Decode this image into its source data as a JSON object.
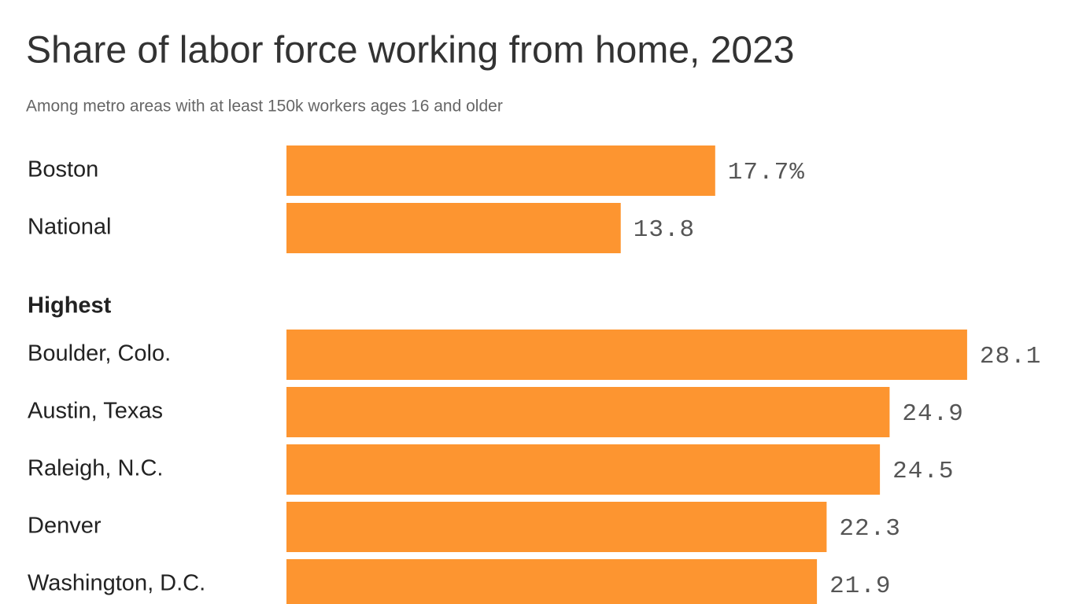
{
  "chart_data": {
    "type": "bar",
    "title": "Share of labor force working from home, 2023",
    "subtitle": "Among metro areas with at least 150k workers ages 16 and older",
    "color": "#fd9530",
    "groups": [
      {
        "categories": [
          "Boston",
          "National"
        ],
        "values": [
          17.7,
          13.8
        ],
        "value_labels": [
          "17.7%",
          "13.8"
        ]
      },
      {
        "label": "Highest",
        "categories": [
          "Boulder, Colo.",
          "Austin, Texas",
          "Raleigh, N.C.",
          "Denver",
          "Washington, D.C."
        ],
        "values": [
          28.1,
          24.9,
          24.5,
          22.3,
          21.9
        ],
        "value_labels": [
          "28.1",
          "24.9",
          "24.5",
          "22.3",
          "21.9"
        ]
      }
    ]
  }
}
